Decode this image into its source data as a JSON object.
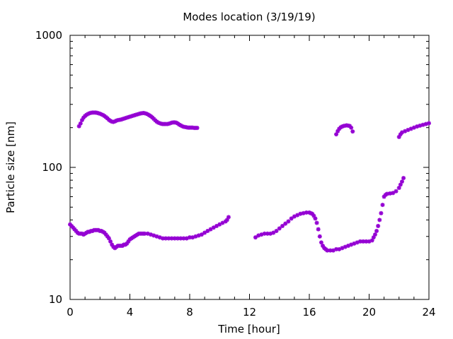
{
  "chart_data": {
    "type": "scatter",
    "title": "Modes location (3/19/19)",
    "xlabel": "Time [hour]",
    "ylabel": "Particle size [nm]",
    "xlim": [
      0,
      24
    ],
    "ylim": [
      10,
      1000
    ],
    "yscale": "log",
    "xticks": [
      0,
      4,
      8,
      12,
      16,
      20,
      24
    ],
    "xtick_labels": [
      "0",
      "4",
      "8",
      "12",
      "16",
      "20",
      "24"
    ],
    "yticks": [
      10,
      100,
      1000
    ],
    "ytick_labels": [
      "10",
      "100",
      "1000"
    ],
    "grid": false,
    "legend": "none",
    "marker_color": "#9400d3",
    "series": [
      {
        "values": [
          [
            0.6,
            205
          ],
          [
            0.7,
            215
          ],
          [
            0.8,
            228
          ],
          [
            0.9,
            238
          ],
          [
            1.0,
            245
          ],
          [
            1.1,
            250
          ],
          [
            1.2,
            254
          ],
          [
            1.3,
            257
          ],
          [
            1.4,
            259
          ],
          [
            1.5,
            260
          ],
          [
            1.6,
            260
          ],
          [
            1.7,
            260
          ],
          [
            1.8,
            259
          ],
          [
            1.9,
            257
          ],
          [
            2.0,
            255
          ],
          [
            2.1,
            252
          ],
          [
            2.2,
            249
          ],
          [
            2.3,
            245
          ],
          [
            2.4,
            240
          ],
          [
            2.5,
            235
          ],
          [
            2.6,
            229
          ],
          [
            2.7,
            225
          ],
          [
            2.8,
            222
          ],
          [
            2.9,
            221
          ],
          [
            3.0,
            223
          ],
          [
            3.1,
            226
          ],
          [
            3.2,
            228
          ],
          [
            3.3,
            229
          ],
          [
            3.4,
            230
          ],
          [
            3.5,
            232
          ],
          [
            3.6,
            234
          ],
          [
            3.7,
            236
          ],
          [
            3.8,
            238
          ],
          [
            3.9,
            240
          ],
          [
            4.0,
            242
          ],
          [
            4.1,
            244
          ],
          [
            4.2,
            246
          ],
          [
            4.3,
            248
          ],
          [
            4.4,
            250
          ],
          [
            4.5,
            252
          ],
          [
            4.6,
            254
          ],
          [
            4.7,
            256
          ],
          [
            4.8,
            257
          ],
          [
            4.9,
            258
          ],
          [
            5.0,
            257
          ],
          [
            5.1,
            255
          ],
          [
            5.2,
            252
          ],
          [
            5.3,
            248
          ],
          [
            5.4,
            244
          ],
          [
            5.5,
            239
          ],
          [
            5.6,
            233
          ],
          [
            5.7,
            227
          ],
          [
            5.8,
            222
          ],
          [
            5.9,
            218
          ],
          [
            6.0,
            216
          ],
          [
            6.1,
            214
          ],
          [
            6.2,
            213
          ],
          [
            6.3,
            213
          ],
          [
            6.4,
            213
          ],
          [
            6.5,
            213
          ],
          [
            6.6,
            214
          ],
          [
            6.7,
            216
          ],
          [
            6.8,
            218
          ],
          [
            6.9,
            219
          ],
          [
            7.0,
            219
          ],
          [
            7.1,
            218
          ],
          [
            7.2,
            215
          ],
          [
            7.3,
            211
          ],
          [
            7.4,
            208
          ],
          [
            7.5,
            205
          ],
          [
            7.6,
            203
          ],
          [
            7.7,
            202
          ],
          [
            7.8,
            201
          ],
          [
            7.9,
            200
          ],
          [
            8.0,
            200
          ],
          [
            8.1,
            200
          ],
          [
            8.2,
            200
          ],
          [
            8.3,
            199
          ],
          [
            8.4,
            199
          ],
          [
            8.5,
            199
          ]
        ]
      },
      {
        "values": [
          [
            0.0,
            37
          ],
          [
            0.1,
            36
          ],
          [
            0.2,
            35
          ],
          [
            0.3,
            34
          ],
          [
            0.4,
            33
          ],
          [
            0.5,
            32
          ],
          [
            0.6,
            31.5
          ],
          [
            0.7,
            31.5
          ],
          [
            0.8,
            31.5
          ],
          [
            0.9,
            31
          ],
          [
            1.0,
            31.5
          ],
          [
            1.1,
            32
          ],
          [
            1.2,
            32.5
          ],
          [
            1.3,
            32.5
          ],
          [
            1.4,
            33
          ],
          [
            1.5,
            33
          ],
          [
            1.6,
            33.5
          ],
          [
            1.7,
            33.5
          ],
          [
            1.8,
            33.5
          ],
          [
            1.9,
            33.5
          ],
          [
            2.0,
            33
          ],
          [
            2.1,
            33
          ],
          [
            2.2,
            32.5
          ],
          [
            2.3,
            32
          ],
          [
            2.4,
            31
          ],
          [
            2.5,
            30
          ],
          [
            2.6,
            29
          ],
          [
            2.7,
            27.5
          ],
          [
            2.8,
            26
          ],
          [
            2.9,
            25
          ],
          [
            3.0,
            24.5
          ],
          [
            3.1,
            25
          ],
          [
            3.2,
            25.5
          ],
          [
            3.3,
            25.5
          ],
          [
            3.4,
            25.5
          ],
          [
            3.5,
            25.5
          ],
          [
            3.6,
            26
          ],
          [
            3.7,
            26
          ],
          [
            3.8,
            26.5
          ],
          [
            3.9,
            27.5
          ],
          [
            4.0,
            28.5
          ],
          [
            4.1,
            29
          ],
          [
            4.2,
            29.5
          ],
          [
            4.3,
            30
          ],
          [
            4.4,
            30.5
          ],
          [
            4.5,
            31
          ],
          [
            4.6,
            31.5
          ],
          [
            4.7,
            31.5
          ],
          [
            4.8,
            31.5
          ],
          [
            4.9,
            31.5
          ],
          [
            5.0,
            31.5
          ],
          [
            5.2,
            31.5
          ],
          [
            5.4,
            31
          ],
          [
            5.6,
            30.5
          ],
          [
            5.8,
            30
          ],
          [
            6.0,
            29.5
          ],
          [
            6.2,
            29
          ],
          [
            6.4,
            29
          ],
          [
            6.6,
            29
          ],
          [
            6.8,
            29
          ],
          [
            7.0,
            29
          ],
          [
            7.2,
            29
          ],
          [
            7.4,
            29
          ],
          [
            7.6,
            29
          ],
          [
            7.8,
            29
          ],
          [
            8.0,
            29.5
          ],
          [
            8.2,
            29.5
          ],
          [
            8.4,
            30
          ],
          [
            8.6,
            30.5
          ],
          [
            8.8,
            31
          ],
          [
            9.0,
            32
          ],
          [
            9.2,
            33
          ],
          [
            9.4,
            34
          ],
          [
            9.6,
            35
          ],
          [
            9.8,
            36
          ],
          [
            10.0,
            37
          ],
          [
            10.2,
            38
          ],
          [
            10.4,
            39
          ],
          [
            10.5,
            40
          ],
          [
            10.6,
            42
          ]
        ]
      },
      {
        "values": [
          [
            12.4,
            29.5
          ],
          [
            12.6,
            30.5
          ],
          [
            12.8,
            31
          ],
          [
            13.0,
            31.5
          ],
          [
            13.2,
            31.5
          ],
          [
            13.4,
            31.5
          ],
          [
            13.6,
            32
          ],
          [
            13.8,
            33
          ],
          [
            14.0,
            34.5
          ],
          [
            14.2,
            36
          ],
          [
            14.4,
            37.5
          ],
          [
            14.6,
            39
          ],
          [
            14.8,
            41
          ],
          [
            15.0,
            42.5
          ],
          [
            15.2,
            43.5
          ],
          [
            15.4,
            44.5
          ],
          [
            15.6,
            45
          ],
          [
            15.8,
            45.5
          ],
          [
            16.0,
            45.5
          ],
          [
            16.1,
            45
          ],
          [
            16.2,
            44.5
          ],
          [
            16.3,
            43
          ],
          [
            16.4,
            41
          ],
          [
            16.5,
            38
          ],
          [
            16.6,
            34
          ],
          [
            16.7,
            30
          ],
          [
            16.8,
            27
          ],
          [
            16.9,
            25.5
          ],
          [
            17.0,
            24.5
          ],
          [
            17.1,
            24
          ],
          [
            17.2,
            23.5
          ],
          [
            17.4,
            23.5
          ],
          [
            17.6,
            23.5
          ],
          [
            17.8,
            24
          ],
          [
            18.0,
            24
          ],
          [
            18.2,
            24.5
          ],
          [
            18.4,
            25
          ],
          [
            18.6,
            25.5
          ],
          [
            18.8,
            26
          ],
          [
            19.0,
            26.5
          ],
          [
            19.2,
            27
          ],
          [
            19.4,
            27.5
          ],
          [
            19.6,
            27.5
          ],
          [
            19.8,
            27.5
          ],
          [
            20.0,
            27.5
          ],
          [
            20.2,
            28
          ],
          [
            20.3,
            29.5
          ],
          [
            20.4,
            31
          ],
          [
            20.5,
            33
          ],
          [
            20.6,
            36
          ],
          [
            20.7,
            40
          ],
          [
            20.8,
            45
          ],
          [
            20.9,
            52
          ],
          [
            21.0,
            60
          ],
          [
            21.1,
            62
          ],
          [
            21.2,
            63
          ],
          [
            21.4,
            63.5
          ],
          [
            21.6,
            64
          ],
          [
            21.8,
            66
          ],
          [
            22.0,
            70
          ],
          [
            22.1,
            74
          ],
          [
            22.2,
            78
          ],
          [
            22.3,
            83
          ]
        ]
      },
      {
        "values": [
          [
            17.8,
            178
          ],
          [
            17.9,
            188
          ],
          [
            18.0,
            196
          ],
          [
            18.1,
            201
          ],
          [
            18.2,
            204
          ],
          [
            18.3,
            206
          ],
          [
            18.4,
            207
          ],
          [
            18.5,
            208
          ],
          [
            18.6,
            207
          ],
          [
            18.7,
            206
          ],
          [
            18.8,
            200
          ],
          [
            18.9,
            187
          ]
        ]
      },
      {
        "values": [
          [
            22.0,
            170
          ],
          [
            22.1,
            178
          ],
          [
            22.2,
            184
          ],
          [
            22.4,
            188
          ],
          [
            22.6,
            192
          ],
          [
            22.8,
            196
          ],
          [
            23.0,
            200
          ],
          [
            23.2,
            204
          ],
          [
            23.4,
            207
          ],
          [
            23.6,
            210
          ],
          [
            23.8,
            213
          ],
          [
            24.0,
            216
          ]
        ]
      }
    ]
  }
}
